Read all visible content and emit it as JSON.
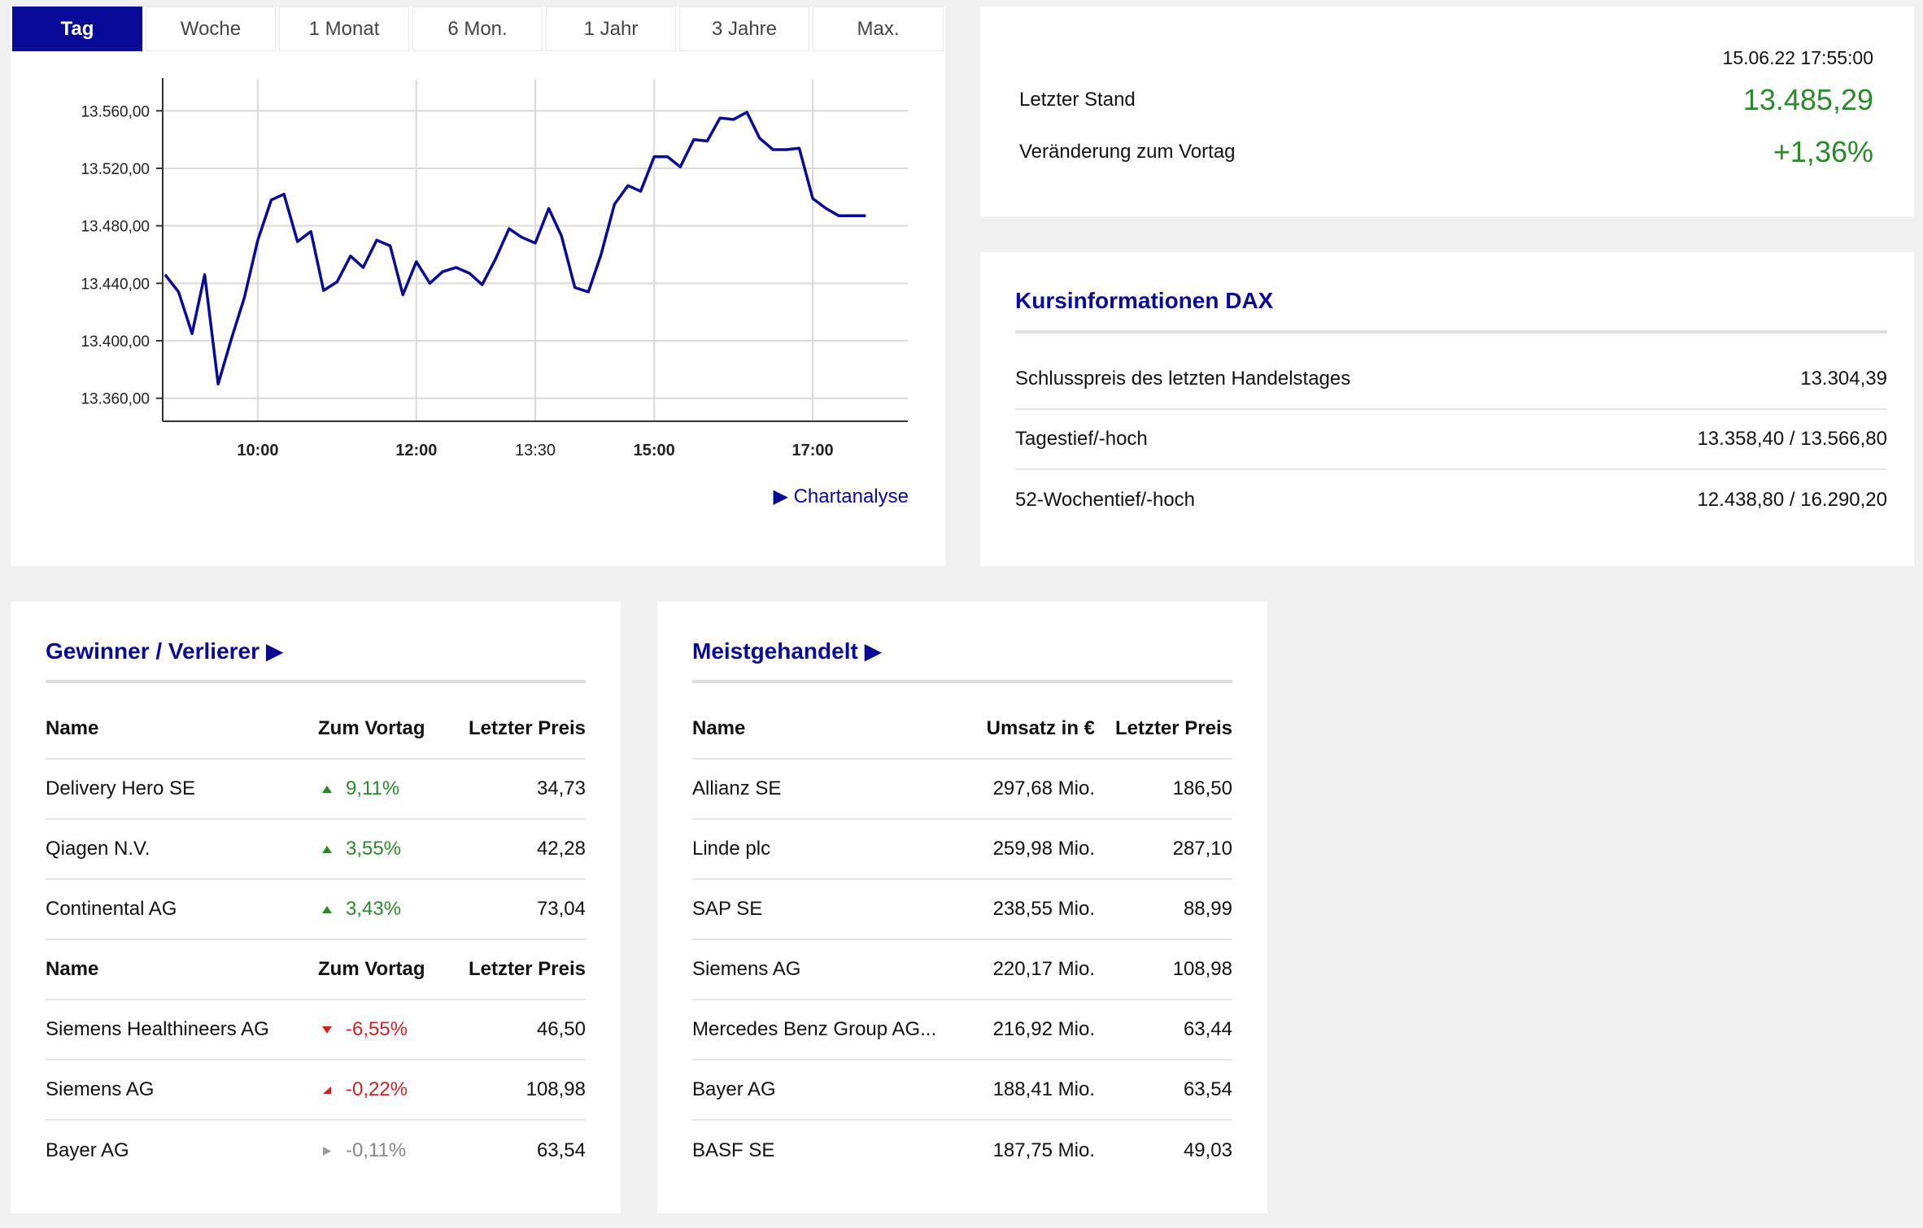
{
  "tabs": [
    "Tag",
    "Woche",
    "1 Monat",
    "6 Mon.",
    "1 Jahr",
    "3 Jahre",
    "Max."
  ],
  "active_tab": "Tag",
  "chart_data": {
    "type": "line",
    "x_tick_labels": [
      "10:00",
      "12:00",
      "13:30",
      "15:00",
      "17:00"
    ],
    "y_tick_labels": [
      "13.560,00",
      "13.520,00",
      "13.480,00",
      "13.440,00",
      "13.400,00",
      "13.360,00"
    ],
    "ylim": [
      13344,
      13576
    ],
    "xlim": [
      8.8,
      18.2
    ],
    "grid": true,
    "color": "#0a0a99",
    "series": [
      {
        "x": [
          8.83,
          9.0,
          9.17,
          9.33,
          9.5,
          9.67,
          9.83,
          10.0,
          10.17,
          10.33,
          10.5,
          10.67,
          10.83,
          11.0,
          11.17,
          11.33,
          11.5,
          11.67,
          11.83,
          12.0,
          12.17,
          12.33,
          12.5,
          12.67,
          12.83,
          13.0,
          13.17,
          13.33,
          13.5,
          13.67,
          13.83,
          14.0,
          14.17,
          14.33,
          14.5,
          14.67,
          14.83,
          15.0,
          15.17,
          15.33,
          15.5,
          15.67,
          15.83,
          16.0,
          16.17,
          16.33,
          16.5,
          16.67,
          16.83,
          17.0,
          17.17,
          17.33,
          17.5,
          17.67
        ],
        "y": [
          13446,
          13434,
          13405,
          13446,
          13370,
          13402,
          13430,
          13470,
          13498,
          13502,
          13469,
          13476,
          13435,
          13441,
          13459,
          13451,
          13470,
          13466,
          13432,
          13455,
          13440,
          13448,
          13451,
          13447,
          13439,
          13457,
          13478,
          13472,
          13468,
          13492,
          13473,
          13437,
          13434,
          13460,
          13495,
          13508,
          13504,
          13528,
          13528,
          13521,
          13540,
          13539,
          13555,
          13554,
          13559,
          13541,
          13533,
          13533,
          13534,
          13499,
          13492,
          13487,
          13487,
          13487
        ]
      }
    ]
  },
  "chartanalyse_label": "Chartanalyse",
  "quote": {
    "timestamp": "15.06.22 17:55:00",
    "last_label": "Letzter Stand",
    "last_value": "13.485,29",
    "change_label": "Veränderung zum Vortag",
    "change_value": "+1,36%",
    "positive_color": "#2a8a2a"
  },
  "info": {
    "title": "Kursinformationen DAX",
    "rows": [
      {
        "label": "Schlusspreis des letzten Handelstages",
        "value": "13.304,39"
      },
      {
        "label": "Tagestief/-hoch",
        "value": "13.358,40 / 13.566,80"
      },
      {
        "label": "52-Wochentief/-hoch",
        "value": "12.438,80 / 16.290,20"
      }
    ]
  },
  "gainers": {
    "title": "Gewinner / Verlierer",
    "headers": {
      "name": "Name",
      "change": "Zum Vortag",
      "price": "Letzter Preis"
    },
    "winners": [
      {
        "name": "Delivery Hero SE",
        "change": "9,11%",
        "price": "34,73",
        "dir": "up"
      },
      {
        "name": "Qiagen N.V.",
        "change": "3,55%",
        "price": "42,28",
        "dir": "up"
      },
      {
        "name": "Continental AG",
        "change": "3,43%",
        "price": "73,04",
        "dir": "up"
      }
    ],
    "losers": [
      {
        "name": "Siemens Healthineers AG",
        "change": "-6,55%",
        "price": "46,50",
        "dir": "down"
      },
      {
        "name": "Siemens AG",
        "change": "-0,22%",
        "price": "108,98",
        "dir": "downright"
      },
      {
        "name": "Bayer AG",
        "change": "-0,11%",
        "price": "63,54",
        "dir": "flat"
      }
    ]
  },
  "traded": {
    "title": "Meistgehandelt",
    "headers": {
      "name": "Name",
      "volume": "Umsatz in €",
      "price": "Letzter Preis"
    },
    "rows": [
      {
        "name": "Allianz SE",
        "volume": "297,68 Mio.",
        "price": "186,50"
      },
      {
        "name": "Linde plc",
        "volume": "259,98 Mio.",
        "price": "287,10"
      },
      {
        "name": "SAP SE",
        "volume": "238,55 Mio.",
        "price": "88,99"
      },
      {
        "name": "Siemens AG",
        "volume": "220,17 Mio.",
        "price": "108,98"
      },
      {
        "name": "Mercedes Benz Group AG...",
        "volume": "216,92 Mio.",
        "price": "63,44"
      },
      {
        "name": "Bayer AG",
        "volume": "188,41 Mio.",
        "price": "63,54"
      },
      {
        "name": "BASF SE",
        "volume": "187,75 Mio.",
        "price": "49,03"
      }
    ]
  }
}
